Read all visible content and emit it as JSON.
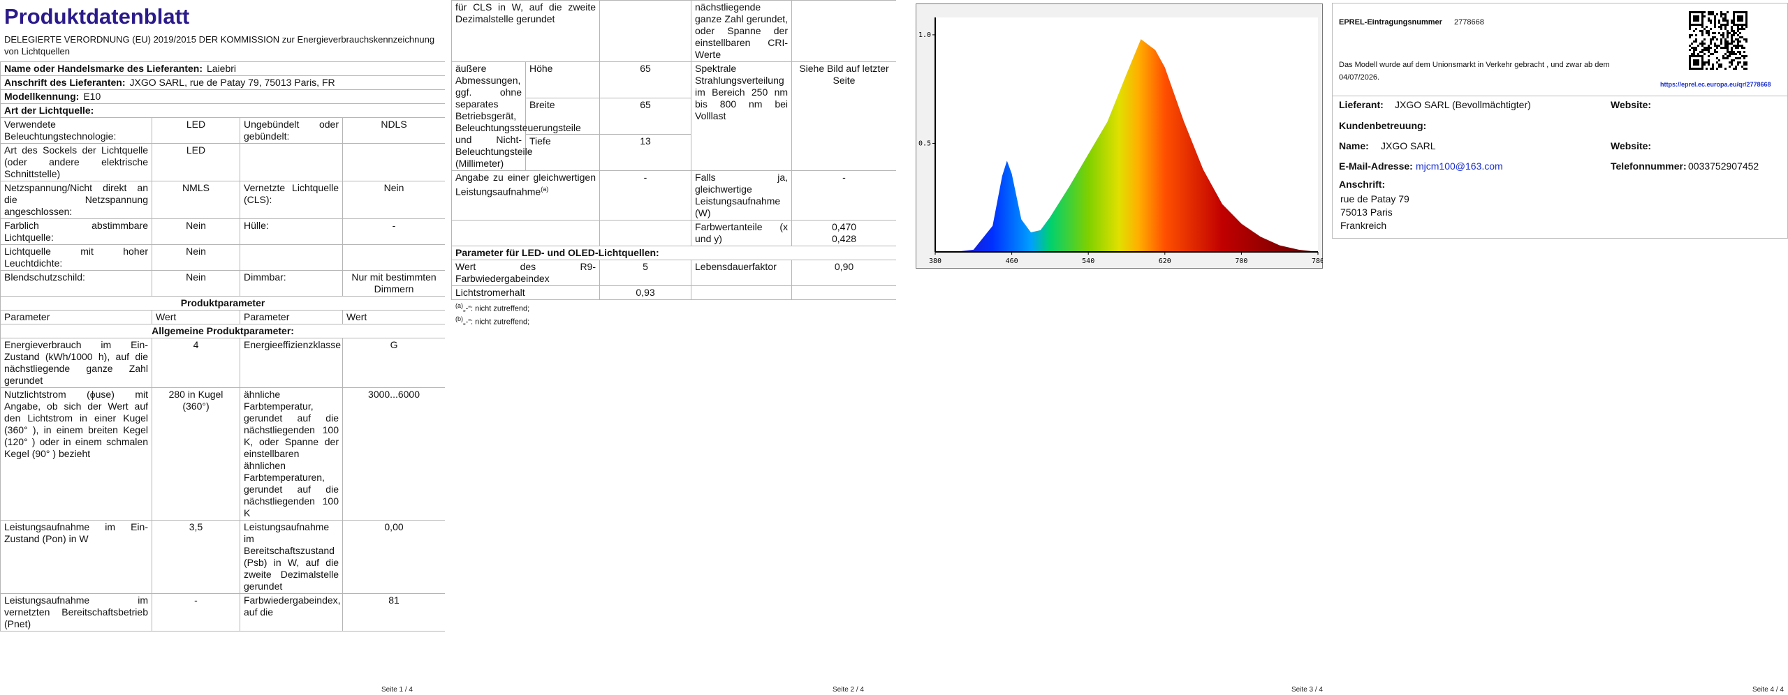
{
  "page1": {
    "title": "Produktdatenblatt",
    "regulation": "DELEGIERTE VERORDNUNG (EU) 2019/2015 DER KOMMISSION zur Energieverbrauchskennzeichnung von Lichtquellen",
    "kv_rows": [
      {
        "label": "Name oder Handelsmarke des Lieferanten:",
        "value": "Laiebri"
      },
      {
        "label": "Anschrift des Lieferanten:",
        "value": "JXGO SARL, rue de Patay 79, 75013 Paris, FR"
      },
      {
        "label": "Modellkennung:",
        "value": "E10"
      }
    ],
    "section": "Art der Lichtquelle:",
    "light_rows": [
      [
        "Verwendete Beleuchtungstechnologie:",
        "LED",
        "Ungebündelt oder gebündelt:",
        "NDLS"
      ],
      [
        "Art des Sockels der Lichtquelle (oder andere elektrische Schnittstelle)",
        "LED",
        null,
        null
      ],
      [
        "Netzspannung/Nicht direkt an die Netzspannung angeschlossen:",
        "NMLS",
        "Vernetzte Lichtquelle (CLS):",
        "Nein"
      ],
      [
        "Farblich abstimmbare Lichtquelle:",
        "Nein",
        "Hülle:",
        "-"
      ],
      [
        "Lichtquelle mit hoher Leuchtdichte:",
        "Nein",
        null,
        null
      ],
      [
        "Blendschutzschild:",
        "Nein",
        "Dimmbar:",
        "Nur mit bestimmten Dimmern"
      ]
    ],
    "product_parameters": "Produktparameter",
    "header": [
      "Parameter",
      "Wert",
      "Parameter",
      "Wert"
    ],
    "general_section": "Allgemeine Produktparameter:",
    "general_rows": [
      [
        "Energieverbrauch im Ein-Zustand (kWh/1000 h), auf die nächstliegende ganze Zahl gerundet",
        "4",
        "Energieeffizienzklasse",
        "G"
      ],
      [
        "Nutzlichtstrom (ϕuse) mit Angabe, ob sich der Wert auf den Lichtstrom in einer Kugel (360° ), in einem breiten Kegel (120° ) oder in einem schmalen Kegel (90° ) bezieht",
        "280 in Kugel (360°)",
        "ähnliche Farbtemperatur, gerundet auf die nächstliegenden 100 K, oder Spanne der einstellbaren ähnlichen Farbtemperaturen, gerundet auf die nächstliegenden 100 K",
        "3000...6000"
      ],
      [
        "Leistungsaufnahme im Ein-Zustand (Pon) in W",
        "3,5",
        "Leistungsaufnahme im Bereitschaftszustand (Psb) in W, auf die zweite Dezimalstelle gerundet",
        "0,00"
      ],
      [
        "Leistungsaufnahme im vernetzten Bereitschaftsbetrieb (Pnet)",
        "-",
        "Farbwiedergabeindex, auf die",
        "81"
      ]
    ],
    "footer": "Seite 1 / 4"
  },
  "page2": {
    "continuation": [
      "für CLS in W, auf die zweite Dezimalstelle gerundet",
      null,
      "nächstliegende ganze Zahl gerundet, oder Spanne der einstellbaren CRI-Werte",
      null
    ],
    "dimensions": {
      "label": "äußere Abmessungen, ggf. ohne separates Betriebsgerät, Beleuchtungssteuerungsteile und Nicht-Beleuchtungsteile (Millimeter)",
      "items": [
        [
          "Höhe",
          "65"
        ],
        [
          "Breite",
          "65"
        ],
        [
          "Tiefe",
          "13"
        ]
      ],
      "spectral_label": "Spektrale Strahlungsverteilung im Bereich 250 nm bis 800 nm bei Volllast",
      "spectral_value": "Siehe Bild auf letzter Seite"
    },
    "equivalent_row": [
      {
        "text": "Angabe zu einer gleichwertigen Leistungsaufnahme",
        "sup": "(a)"
      },
      "-",
      "Falls ja, gleichwertige Leistungsaufnahme (W)",
      "-"
    ],
    "chromaticity_row": [
      null,
      null,
      "Farbwertanteile (x und y)",
      [
        "0,470",
        "0,428"
      ]
    ],
    "led_section": "Parameter für LED- und OLED-Lichtquellen:",
    "led_rows": [
      [
        "Wert des R9-Farbwiedergabeindex",
        "5",
        "Lebensdauerfaktor",
        "0,90"
      ],
      [
        "Lichtstromerhalt",
        "0,93",
        null,
        null
      ]
    ],
    "footnotes": [
      {
        "sup": "(a)",
        "text": "„-“: nicht zutreffend;"
      },
      {
        "sup": "(b)",
        "text": "„-“: nicht zutreffend;"
      }
    ],
    "footer": "Seite 2 / 4"
  },
  "chart_data": {
    "type": "area",
    "x": [
      380,
      400,
      420,
      440,
      450,
      455,
      460,
      470,
      480,
      490,
      500,
      520,
      540,
      560,
      580,
      595,
      610,
      620,
      640,
      660,
      680,
      700,
      720,
      740,
      760,
      780
    ],
    "values": [
      0,
      0,
      0.01,
      0.12,
      0.35,
      0.42,
      0.36,
      0.15,
      0.09,
      0.1,
      0.16,
      0.3,
      0.45,
      0.6,
      0.82,
      0.98,
      0.93,
      0.85,
      0.6,
      0.38,
      0.22,
      0.13,
      0.07,
      0.03,
      0.01,
      0
    ],
    "xlim": [
      380,
      780
    ],
    "ylim": [
      0,
      1.08
    ],
    "xticks": [
      380,
      460,
      540,
      620,
      700,
      780
    ],
    "yticks": [
      0.5,
      {
        "value": 1,
        "label": "1.0"
      }
    ]
  },
  "page3": {
    "footer": "Seite 3 / 4"
  },
  "page4": {
    "eprel_label": "EPREL-Eintragungsnummer",
    "eprel_number": "2778668",
    "market_text": "Das Modell wurde auf dem Unionsmarkt in Verkehr gebracht , und zwar ab dem 04/07/2026.",
    "qr_link": "https://eprel.ec.europa.eu/qr/2778668",
    "supplier_label": "Lieferant:",
    "supplier_value": "JXGO SARL (Bevollmächtigter)",
    "website_label": "Website:",
    "support_label": "Kundenbetreuung:",
    "name_label": "Name:",
    "name_value": "JXGO SARL",
    "website_label_2": "Website:",
    "email_label": "E-Mail-Adresse:",
    "email_value": "mjcm100@163.com",
    "phone_label": "Telefonnummer:",
    "phone_value": "0033752907452",
    "address_label": "Anschrift:",
    "address_lines": [
      "rue de Patay 79",
      "75013 Paris",
      "Frankreich"
    ],
    "footer": "Seite 4 / 4"
  }
}
